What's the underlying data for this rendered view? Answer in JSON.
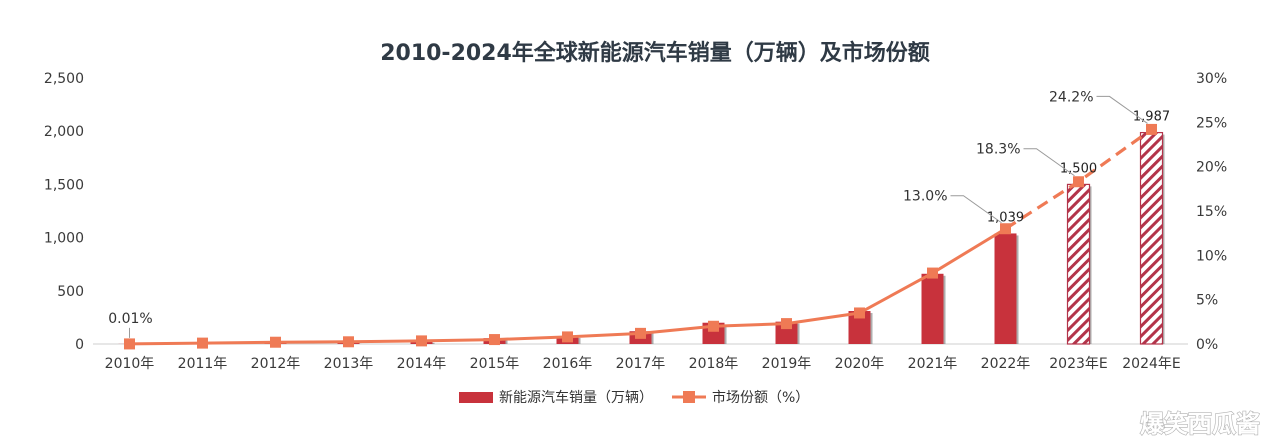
{
  "chart_data": {
    "type": "bar",
    "title": "2010-2024年全球新能源汽车销量（万辆）及市场份额",
    "categories": [
      "2010年",
      "2011年",
      "2012年",
      "2013年",
      "2014年",
      "2015年",
      "2016年",
      "2017年",
      "2018年",
      "2019年",
      "2020年",
      "2021年",
      "2022年",
      "2023年E",
      "2024年E"
    ],
    "series": [
      {
        "name": "新能源汽车销量（万辆）",
        "type": "bar",
        "axis": "left",
        "color": "#c8323c",
        "values": [
          1,
          5,
          12,
          20,
          30,
          55,
          75,
          120,
          200,
          210,
          310,
          660,
          1039,
          1500,
          1987
        ],
        "projected_from_index": 13,
        "data_labels": {
          "12": "1,039",
          "13": "1,500",
          "14": "1,987"
        }
      },
      {
        "name": "市场份额（%）",
        "type": "line",
        "axis": "right",
        "color": "#ef7a55",
        "values": [
          0.01,
          0.1,
          0.2,
          0.25,
          0.35,
          0.5,
          0.8,
          1.2,
          2.0,
          2.3,
          3.5,
          8.0,
          13.0,
          18.3,
          24.2
        ],
        "dashed_from_index": 12,
        "data_labels": {
          "0": "0.01%",
          "12": "13.0%",
          "13": "18.3%",
          "14": "24.2%"
        }
      }
    ],
    "y_left": {
      "min": 0,
      "max": 2500,
      "ticks": [
        0,
        500,
        1000,
        1500,
        2000,
        2500
      ],
      "tick_labels": [
        "0",
        "500",
        "1,000",
        "1,500",
        "2,000",
        "2,500"
      ]
    },
    "y_right": {
      "min": 0,
      "max": 30,
      "ticks": [
        0,
        5,
        10,
        15,
        20,
        25,
        30
      ],
      "tick_labels": [
        "0%",
        "5%",
        "10%",
        "15%",
        "20%",
        "25%",
        "30%"
      ]
    },
    "grid": false,
    "legend_position": "bottom"
  },
  "watermark": "爆笑西瓜酱"
}
